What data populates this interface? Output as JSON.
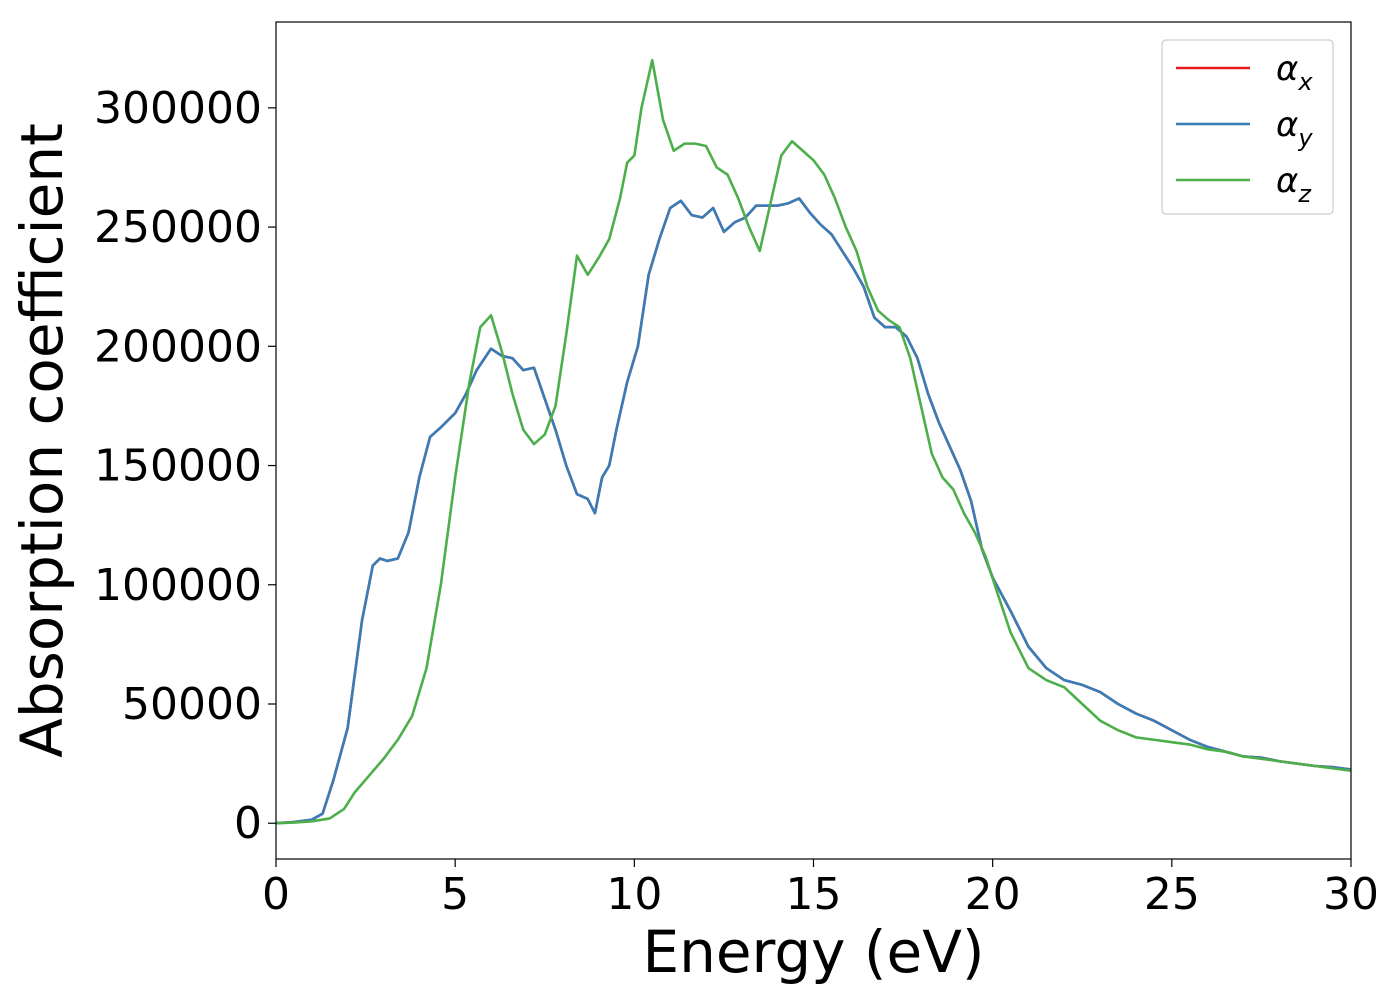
{
  "chart_data": {
    "type": "line",
    "title": "",
    "xlabel": "Energy (eV)",
    "ylabel": "Absorption coefficient",
    "xlim": [
      0,
      30
    ],
    "ylim": [
      -15000,
      336000
    ],
    "xticks": [
      0,
      5,
      10,
      15,
      20,
      25,
      30
    ],
    "yticks": [
      0,
      50000,
      100000,
      150000,
      200000,
      250000,
      300000
    ],
    "grid": false,
    "legend": "top-right",
    "series": [
      {
        "name": "α",
        "subscript": "x",
        "color": "#e41a1c",
        "x": [
          0,
          0.5,
          1.0,
          1.3,
          1.6,
          2.0,
          2.4,
          2.7,
          2.9,
          3.1,
          3.4,
          3.7,
          4.0,
          4.3,
          4.6,
          5.0,
          5.3,
          5.6,
          6.0,
          6.3,
          6.6,
          6.9,
          7.2,
          7.5,
          7.8,
          8.1,
          8.4,
          8.7,
          8.9,
          9.1,
          9.3,
          9.5,
          9.8,
          10.1,
          10.4,
          10.7,
          11.0,
          11.3,
          11.6,
          11.9,
          12.2,
          12.5,
          12.8,
          13.1,
          13.4,
          13.7,
          14.0,
          14.3,
          14.6,
          14.9,
          15.2,
          15.5,
          15.8,
          16.1,
          16.4,
          16.7,
          17.0,
          17.3,
          17.6,
          17.9,
          18.2,
          18.5,
          18.8,
          19.1,
          19.4,
          19.7,
          20.0,
          20.5,
          21.0,
          21.5,
          22.0,
          22.5,
          23.0,
          23.5,
          24.0,
          24.5,
          25.0,
          25.5,
          26.0,
          26.5,
          27.0,
          27.5,
          28.0,
          28.5,
          29.0,
          29.5,
          30.0
        ],
        "values": [
          0,
          500,
          1500,
          4000,
          18000,
          40000,
          85000,
          108000,
          111000,
          110000,
          111000,
          122000,
          145000,
          162000,
          166000,
          172000,
          180000,
          190000,
          199000,
          196000,
          195000,
          190000,
          191000,
          178000,
          165000,
          150000,
          138000,
          136000,
          130000,
          145000,
          150000,
          165000,
          185000,
          200000,
          230000,
          245000,
          258000,
          261000,
          255000,
          254000,
          258000,
          248000,
          252000,
          254000,
          259000,
          259000,
          259000,
          260000,
          262000,
          256000,
          251000,
          247000,
          240000,
          233000,
          225000,
          212000,
          208000,
          208000,
          204000,
          195000,
          180000,
          168000,
          158000,
          148000,
          135000,
          115000,
          103000,
          89000,
          74000,
          65000,
          60000,
          58000,
          55000,
          50000,
          46000,
          43000,
          39000,
          35000,
          32000,
          30000,
          28000,
          27500,
          26000,
          25000,
          24000,
          23500,
          22500
        ]
      },
      {
        "name": "α",
        "subscript": "y",
        "color": "#377eb8",
        "x": [
          0,
          0.5,
          1.0,
          1.3,
          1.6,
          2.0,
          2.4,
          2.7,
          2.9,
          3.1,
          3.4,
          3.7,
          4.0,
          4.3,
          4.6,
          5.0,
          5.3,
          5.6,
          6.0,
          6.3,
          6.6,
          6.9,
          7.2,
          7.5,
          7.8,
          8.1,
          8.4,
          8.7,
          8.9,
          9.1,
          9.3,
          9.5,
          9.8,
          10.1,
          10.4,
          10.7,
          11.0,
          11.3,
          11.6,
          11.9,
          12.2,
          12.5,
          12.8,
          13.1,
          13.4,
          13.7,
          14.0,
          14.3,
          14.6,
          14.9,
          15.2,
          15.5,
          15.8,
          16.1,
          16.4,
          16.7,
          17.0,
          17.3,
          17.6,
          17.9,
          18.2,
          18.5,
          18.8,
          19.1,
          19.4,
          19.7,
          20.0,
          20.5,
          21.0,
          21.5,
          22.0,
          22.5,
          23.0,
          23.5,
          24.0,
          24.5,
          25.0,
          25.5,
          26.0,
          26.5,
          27.0,
          27.5,
          28.0,
          28.5,
          29.0,
          29.5,
          30.0
        ],
        "values": [
          0,
          500,
          1500,
          4000,
          18000,
          40000,
          85000,
          108000,
          111000,
          110000,
          111000,
          122000,
          145000,
          162000,
          166000,
          172000,
          180000,
          190000,
          199000,
          196000,
          195000,
          190000,
          191000,
          178000,
          165000,
          150000,
          138000,
          136000,
          130000,
          145000,
          150000,
          165000,
          185000,
          200000,
          230000,
          245000,
          258000,
          261000,
          255000,
          254000,
          258000,
          248000,
          252000,
          254000,
          259000,
          259000,
          259000,
          260000,
          262000,
          256000,
          251000,
          247000,
          240000,
          233000,
          225000,
          212000,
          208000,
          208000,
          204000,
          195000,
          180000,
          168000,
          158000,
          148000,
          135000,
          115000,
          103000,
          89000,
          74000,
          65000,
          60000,
          58000,
          55000,
          50000,
          46000,
          43000,
          39000,
          35000,
          32000,
          30000,
          28000,
          27500,
          26000,
          25000,
          24000,
          23500,
          22500
        ]
      },
      {
        "name": "α",
        "subscript": "z",
        "color": "#4daf4a",
        "x": [
          0,
          0.5,
          1.0,
          1.5,
          1.9,
          2.2,
          2.6,
          3.0,
          3.4,
          3.8,
          4.2,
          4.6,
          5.0,
          5.4,
          5.7,
          6.0,
          6.3,
          6.6,
          6.9,
          7.2,
          7.5,
          7.8,
          8.1,
          8.4,
          8.7,
          9.0,
          9.3,
          9.6,
          9.8,
          10.0,
          10.2,
          10.5,
          10.8,
          11.1,
          11.4,
          11.7,
          12.0,
          12.3,
          12.6,
          12.9,
          13.2,
          13.5,
          13.8,
          14.1,
          14.4,
          14.7,
          15.0,
          15.3,
          15.6,
          15.9,
          16.2,
          16.5,
          16.8,
          17.1,
          17.4,
          17.7,
          18.0,
          18.3,
          18.6,
          18.9,
          19.2,
          19.5,
          19.8,
          20.1,
          20.5,
          21.0,
          21.5,
          22.0,
          22.5,
          23.0,
          23.5,
          24.0,
          24.5,
          25.0,
          25.5,
          26.0,
          26.5,
          27.0,
          27.5,
          28.0,
          28.5,
          29.0,
          29.5,
          30.0
        ],
        "values": [
          0,
          300,
          800,
          2000,
          6000,
          13000,
          20000,
          27000,
          35000,
          45000,
          65000,
          100000,
          145000,
          185000,
          208000,
          213000,
          198000,
          180000,
          165000,
          159000,
          163000,
          175000,
          205000,
          238000,
          230000,
          237000,
          245000,
          262000,
          277000,
          280000,
          300000,
          320000,
          295000,
          282000,
          285000,
          285000,
          284000,
          275000,
          272000,
          262000,
          250000,
          240000,
          260000,
          280000,
          286000,
          282000,
          278000,
          272000,
          262000,
          250000,
          240000,
          225000,
          215000,
          211000,
          208000,
          195000,
          175000,
          155000,
          145000,
          140000,
          130000,
          122000,
          112000,
          98000,
          80000,
          65000,
          60000,
          57000,
          50000,
          43000,
          39000,
          36000,
          35000,
          34000,
          33000,
          31000,
          30000,
          28000,
          27000,
          26000,
          25000,
          24000,
          23000,
          22000
        ]
      }
    ]
  }
}
